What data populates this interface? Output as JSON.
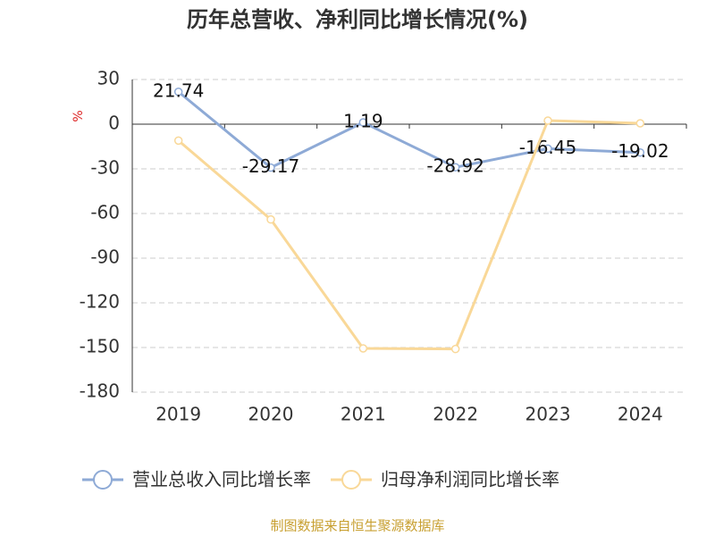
{
  "chart_data": {
    "type": "line",
    "title": "历年总营收、净利同比增长情况(%)",
    "y_label": "%",
    "categories": [
      "2019",
      "2020",
      "2021",
      "2022",
      "2023",
      "2024"
    ],
    "series": [
      {
        "name": "营业总收入同比增长率",
        "color": "#8eaad6",
        "values": [
          21.74,
          -29.17,
          1.19,
          -28.92,
          -16.45,
          -19.02
        ],
        "show_labels": true
      },
      {
        "name": "归母净利润同比增长率",
        "color": "#f9d898",
        "values": [
          -11,
          -64,
          -150.6,
          -151,
          2.4,
          0.6
        ],
        "show_labels": false
      }
    ],
    "ylim": [
      -180,
      30
    ],
    "yticks": [
      30,
      0,
      -30,
      -60,
      -90,
      -120,
      -150,
      -180
    ],
    "grid": true,
    "source": "制图数据来自恒生聚源数据库"
  }
}
